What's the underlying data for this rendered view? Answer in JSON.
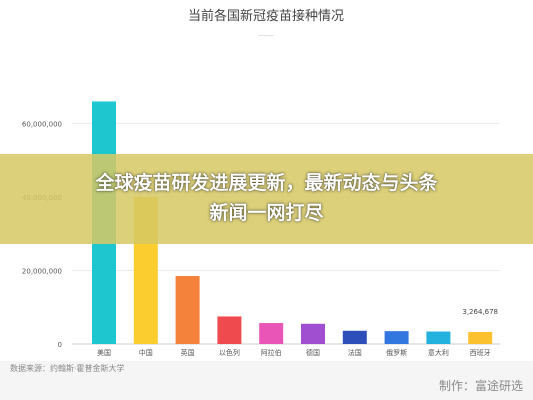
{
  "chart_data": {
    "type": "bar",
    "title": "当前各国新冠疫苗接种情况",
    "subtitle": "———",
    "categories": [
      "美国",
      "中国",
      "英国",
      "以色列",
      "阿拉伯",
      "德国",
      "法国",
      "俄罗斯",
      "意大利",
      "西班牙"
    ],
    "values": [
      66000000,
      40000000,
      18500000,
      7500000,
      5700000,
      5500000,
      3600000,
      3500000,
      3400000,
      3264678
    ],
    "colors": [
      "#1ec6cf",
      "#fbcd2f",
      "#f5823b",
      "#ef4b4f",
      "#e955b6",
      "#a04fd1",
      "#2d4fb9",
      "#3277e0",
      "#23b2de",
      "#fbc12f"
    ],
    "yticks": [
      "0",
      "20,000,000",
      "40,000,000",
      "60,000,000"
    ],
    "ylim": [
      0,
      80000000
    ],
    "data_labels": [
      {
        "index": 9,
        "text": "3,264,678"
      }
    ],
    "grid": true
  },
  "banner": {
    "line1": "全球疫苗研发进展更新，最新动态与头条",
    "line2": "新闻一网打尽"
  },
  "source": "数据来源：约翰斯·霍普金斯大学",
  "watermark": "制作：富途研选"
}
